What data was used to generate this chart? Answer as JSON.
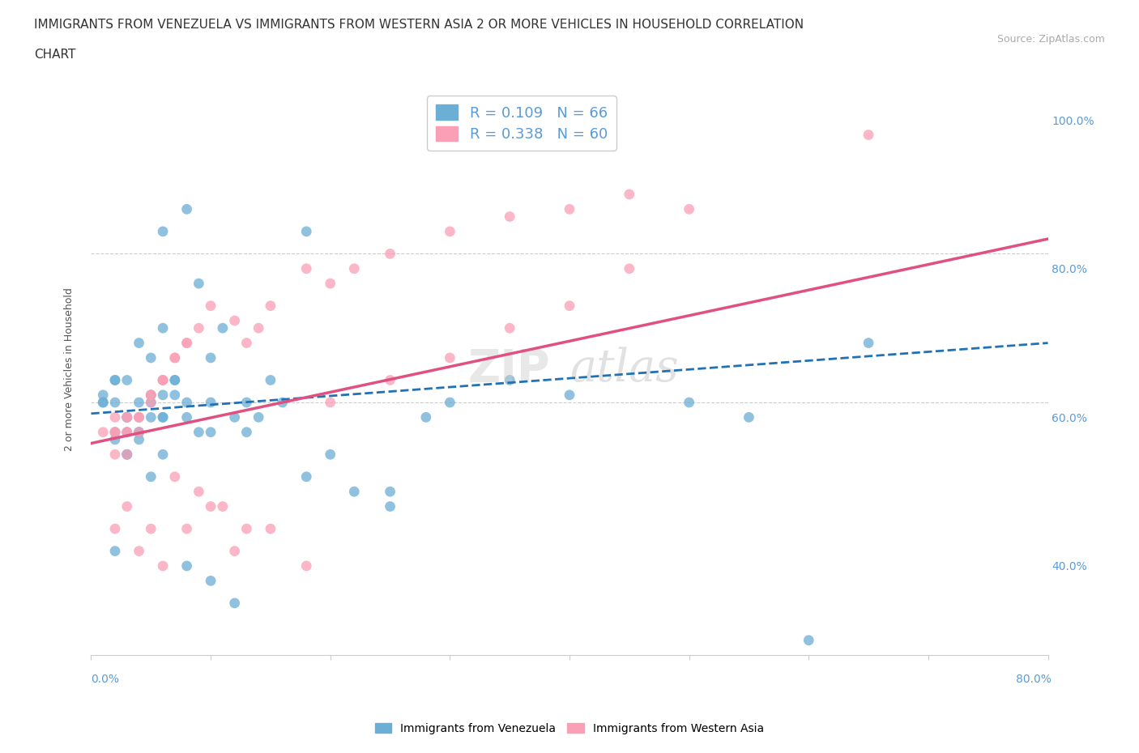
{
  "title_line1": "IMMIGRANTS FROM VENEZUELA VS IMMIGRANTS FROM WESTERN ASIA 2 OR MORE VEHICLES IN HOUSEHOLD CORRELATION",
  "title_line2": "CHART",
  "source": "Source: ZipAtlas.com",
  "ylabel": "2 or more Vehicles in Household",
  "legend_blue_R": "R = 0.109",
  "legend_blue_N": "N = 66",
  "legend_pink_R": "R = 0.338",
  "legend_pink_N": "N = 60",
  "legend_label_blue": "Immigrants from Venezuela",
  "legend_label_pink": "Immigrants from Western Asia",
  "color_blue": "#6baed6",
  "color_pink": "#fa9fb5",
  "color_blue_dark": "#2171b5",
  "color_pink_dark": "#e05080",
  "watermark_zip": "ZIP",
  "watermark_atlas": "atlas",
  "blue_scatter_x": [
    0.02,
    0.03,
    0.04,
    0.02,
    0.01,
    0.03,
    0.05,
    0.04,
    0.06,
    0.03,
    0.02,
    0.01,
    0.04,
    0.05,
    0.03,
    0.02,
    0.06,
    0.07,
    0.05,
    0.04,
    0.03,
    0.02,
    0.01,
    0.08,
    0.09,
    0.06,
    0.05,
    0.04,
    0.03,
    0.07,
    0.08,
    0.02,
    0.06,
    0.05,
    0.1,
    0.07,
    0.06,
    0.08,
    0.09,
    0.13,
    0.12,
    0.1,
    0.11,
    0.1,
    0.15,
    0.16,
    0.14,
    0.13,
    0.2,
    0.18,
    0.22,
    0.25,
    0.3,
    0.28,
    0.35,
    0.4,
    0.5,
    0.55,
    0.6,
    0.65,
    0.1,
    0.12,
    0.08,
    0.06,
    0.25,
    0.18
  ],
  "blue_scatter_y": [
    0.62,
    0.6,
    0.58,
    0.65,
    0.62,
    0.55,
    0.63,
    0.57,
    0.6,
    0.58,
    0.65,
    0.63,
    0.62,
    0.6,
    0.55,
    0.58,
    0.6,
    0.63,
    0.62,
    0.58,
    0.6,
    0.57,
    0.62,
    0.88,
    0.78,
    0.72,
    0.68,
    0.7,
    0.65,
    0.65,
    0.62,
    0.42,
    0.55,
    0.52,
    0.62,
    0.65,
    0.63,
    0.6,
    0.58,
    0.62,
    0.6,
    0.58,
    0.72,
    0.68,
    0.65,
    0.62,
    0.6,
    0.58,
    0.55,
    0.52,
    0.5,
    0.48,
    0.62,
    0.6,
    0.65,
    0.63,
    0.62,
    0.6,
    0.3,
    0.7,
    0.38,
    0.35,
    0.4,
    0.85,
    0.5,
    0.85
  ],
  "pink_scatter_x": [
    0.01,
    0.02,
    0.03,
    0.02,
    0.03,
    0.04,
    0.03,
    0.02,
    0.05,
    0.04,
    0.03,
    0.02,
    0.06,
    0.05,
    0.04,
    0.03,
    0.07,
    0.06,
    0.05,
    0.04,
    0.08,
    0.07,
    0.06,
    0.09,
    0.08,
    0.1,
    0.12,
    0.15,
    0.14,
    0.13,
    0.18,
    0.2,
    0.22,
    0.25,
    0.3,
    0.35,
    0.4,
    0.45,
    0.5,
    0.02,
    0.03,
    0.04,
    0.05,
    0.06,
    0.08,
    0.1,
    0.12,
    0.15,
    0.18,
    0.65,
    0.07,
    0.09,
    0.11,
    0.13,
    0.2,
    0.25,
    0.3,
    0.35,
    0.4,
    0.45
  ],
  "pink_scatter_y": [
    0.58,
    0.55,
    0.6,
    0.58,
    0.55,
    0.58,
    0.6,
    0.58,
    0.62,
    0.6,
    0.58,
    0.6,
    0.65,
    0.63,
    0.6,
    0.58,
    0.68,
    0.65,
    0.63,
    0.6,
    0.7,
    0.68,
    0.65,
    0.72,
    0.7,
    0.75,
    0.73,
    0.75,
    0.72,
    0.7,
    0.8,
    0.78,
    0.8,
    0.82,
    0.85,
    0.87,
    0.88,
    0.9,
    0.88,
    0.45,
    0.48,
    0.42,
    0.45,
    0.4,
    0.45,
    0.48,
    0.42,
    0.45,
    0.4,
    0.98,
    0.52,
    0.5,
    0.48,
    0.45,
    0.62,
    0.65,
    0.68,
    0.72,
    0.75,
    0.8
  ],
  "blue_line_x": [
    0.0,
    0.8
  ],
  "blue_line_y": [
    0.605,
    0.7
  ],
  "pink_line_x": [
    0.0,
    0.8
  ],
  "pink_line_y": [
    0.565,
    0.84
  ],
  "xlim": [
    0.0,
    0.8
  ],
  "ylim_low": 0.28,
  "ylim_high": 1.05,
  "hline_y1": 0.82,
  "hline_y2": 0.62,
  "ytick_vals": [
    0.4,
    0.6,
    0.8,
    1.0
  ],
  "yaxis_pct_labels": [
    "40.0%",
    "60.0%",
    "80.0%",
    "100.0%"
  ],
  "background_color": "#ffffff"
}
